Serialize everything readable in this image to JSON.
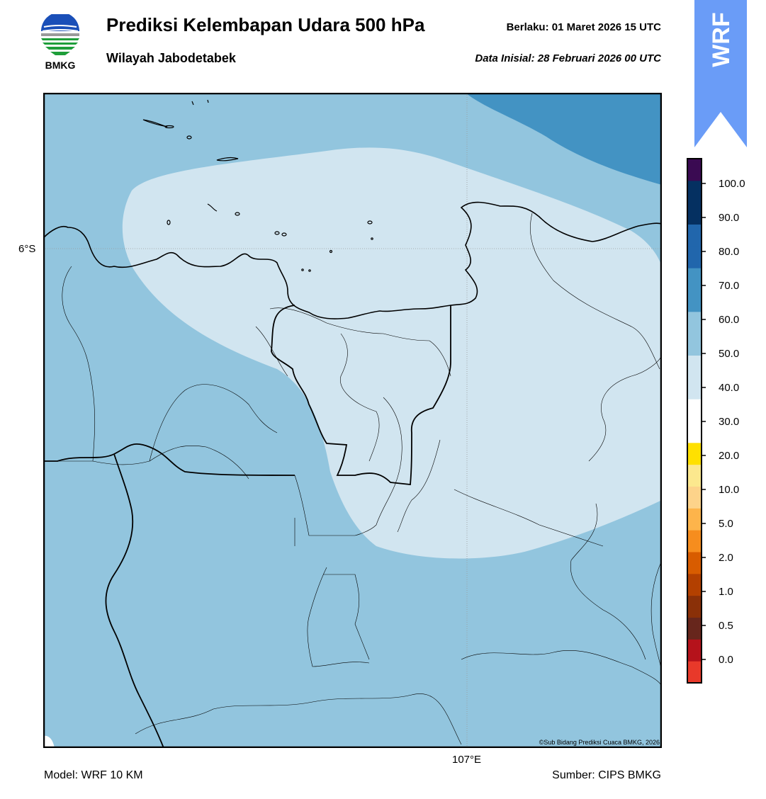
{
  "header": {
    "title": "Prediksi Kelembapan Udara 500 hPa",
    "subtitle": "Wilayah Jabodetabek",
    "valid": "Berlaku:  01 Maret 2026 15 UTC",
    "initial": "Data Inisial:  28 Februari 2026 00 UTC",
    "logo_text": "BMKG",
    "banner_text": "WRF"
  },
  "map": {
    "lat_label": "6°S",
    "lon_label": "107°E",
    "credit": "©Sub Bidang Prediksi Cuaca BMKG, 2026",
    "colors": {
      "class_50_60": "#d1e5f0",
      "class_60_70": "#92c5de",
      "class_70_80": "#4393c3",
      "coast": "#000000"
    }
  },
  "footer": {
    "model": "Model: WRF 10 KM",
    "source": "Sumber: CIPS BMKG"
  },
  "colorbar": {
    "labels": [
      "0.0",
      "0.5",
      "1.0",
      "2.0",
      "5.0",
      "10.0",
      "20.0",
      "30.0",
      "40.0",
      "50.0",
      "60.0",
      "70.0",
      "80.0",
      "90.0",
      "100.0"
    ],
    "colors_bottom_to_top": [
      "#e8392a",
      "#b5121b",
      "#67261c",
      "#8a3008",
      "#b34000",
      "#d85c00",
      "#f68d1e",
      "#fdb44b",
      "#fdd38a",
      "#fce88e",
      "#ffe000",
      "#ffffff",
      "#ffffff",
      "#d1e5f0",
      "#d1e5f0",
      "#92c5de",
      "#92c5de",
      "#4393c3",
      "#4393c3",
      "#2166ac",
      "#2166ac",
      "#053061",
      "#053061",
      "#3a0a52"
    ]
  }
}
